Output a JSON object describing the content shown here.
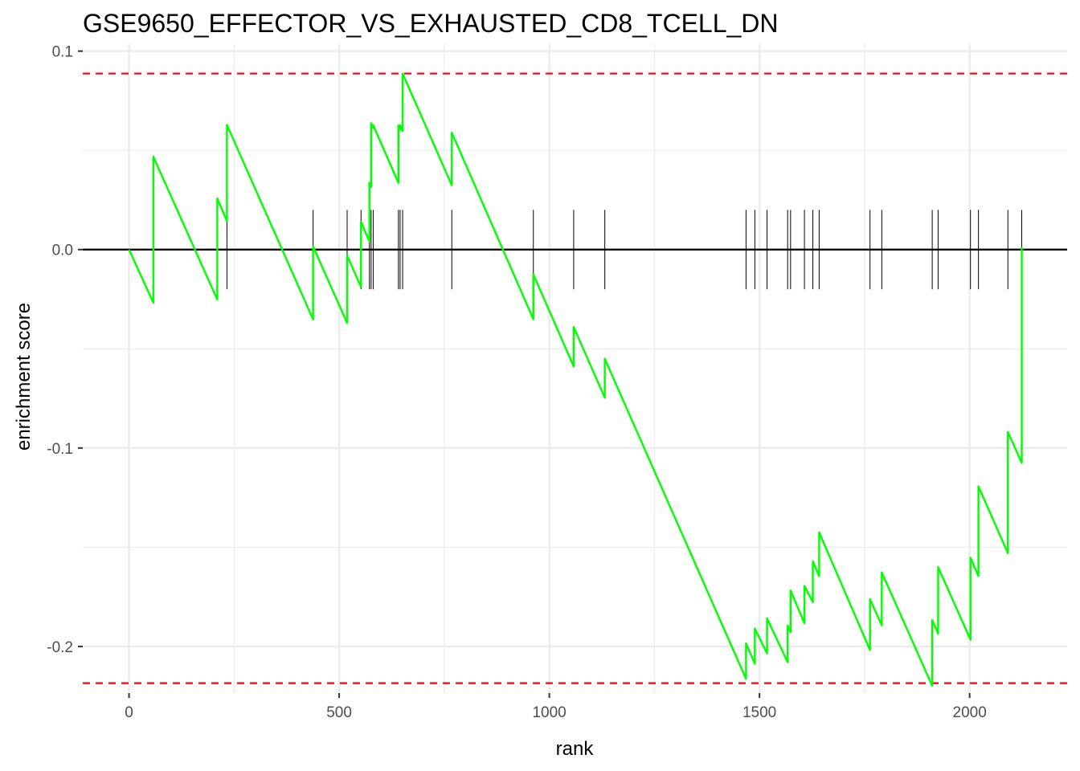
{
  "chart_data": {
    "type": "line",
    "title": "GSE9650_EFFECTOR_VS_EXHAUSTED_CD8_TCELL_DN",
    "xlabel": "rank",
    "ylabel": "enrichment score",
    "xlim": [
      -110,
      2232
    ],
    "ylim": [
      -0.2235,
      0.1035
    ],
    "x_ticks": [
      0,
      500,
      1000,
      1500,
      2000
    ],
    "x_tick_labels": [
      "0",
      "500",
      "1000",
      "1500",
      "2000"
    ],
    "y_ticks": [
      0.1,
      0.0,
      -0.1,
      -0.2
    ],
    "y_tick_labels": [
      "0.1",
      "0.0",
      "-0.1",
      "-0.2"
    ],
    "grid": true,
    "colors": {
      "curve": "#00ff00",
      "threshold": "#ff0000",
      "baseline": "#000000",
      "hits": "#000000",
      "grid": "#ebebeb"
    },
    "thresholds": [
      0.0887,
      -0.2185
    ],
    "hits": [
      58,
      210,
      233,
      438,
      519,
      552,
      572,
      576,
      581,
      641,
      645,
      651,
      768,
      962,
      1058,
      1132,
      1468,
      1489,
      1518,
      1567,
      1574,
      1607,
      1627,
      1642,
      1763,
      1791,
      1911,
      1925,
      2002,
      2021,
      2091,
      2124
    ],
    "series": [
      {
        "x": [
          0,
          58,
          58,
          210,
          210,
          233,
          233,
          438,
          438,
          519,
          519,
          552,
          552,
          572,
          572,
          576,
          576,
          581,
          581,
          641,
          641,
          645,
          645,
          651,
          651,
          768,
          768,
          962,
          962,
          1058,
          1058,
          1132,
          1132,
          1468,
          1468,
          1489,
          1489,
          1518,
          1518,
          1567,
          1567,
          1574,
          1574,
          1607,
          1607,
          1627,
          1627,
          1642,
          1642,
          1763,
          1763,
          1791,
          1791,
          1911,
          1911,
          1925,
          1925,
          2002,
          2002,
          2021,
          2021,
          2091,
          2091,
          2124,
          2124
        ],
        "y": [
          0,
          -0.0268,
          0.0468,
          -0.0252,
          0.0258,
          0.0144,
          0.0628,
          -0.0352,
          0.0015,
          -0.037,
          -0.003,
          -0.0189,
          0.014,
          0.004,
          0.0337,
          0.0315,
          0.0637,
          0.0612,
          0.0627,
          0.0336,
          0.0625,
          0.0603,
          0.0627,
          0.0598,
          0.0887,
          0.0324,
          0.0589,
          -0.0351,
          -0.0125,
          -0.0589,
          -0.039,
          -0.0747,
          -0.055,
          -0.2163,
          -0.1985,
          -0.2087,
          -0.191,
          -0.2035,
          -0.1858,
          -0.2079,
          -0.1895,
          -0.1928,
          -0.1718,
          -0.1883,
          -0.1695,
          -0.1777,
          -0.157,
          -0.1646,
          -0.1425,
          -0.2018,
          -0.1762,
          -0.1893,
          -0.1627,
          -0.2198,
          -0.1867,
          -0.1935,
          -0.16,
          -0.1966,
          -0.1553,
          -0.1645,
          -0.1193,
          -0.153,
          -0.0919,
          -0.1075,
          0.0012
        ]
      }
    ]
  }
}
